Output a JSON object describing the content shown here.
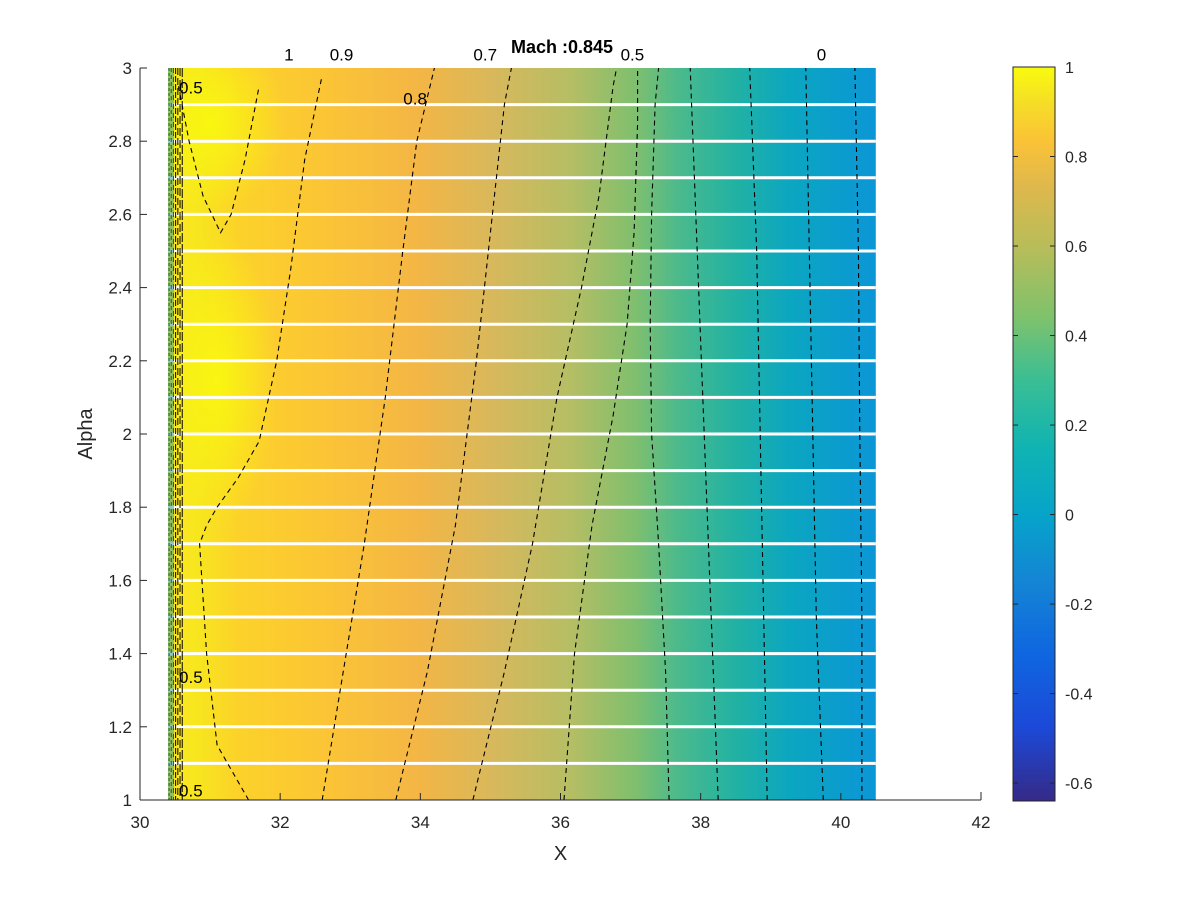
{
  "chart_data": {
    "type": "heatmap",
    "title": "Mach :0.845",
    "xlabel": "X",
    "ylabel": "Alpha",
    "xlim": [
      30,
      42
    ],
    "ylim": [
      1,
      3
    ],
    "x_ticks": [
      "30",
      "32",
      "34",
      "36",
      "38",
      "40",
      "42"
    ],
    "y_ticks": [
      "1",
      "1.2",
      "1.4",
      "1.6",
      "1.8",
      "2",
      "2.2",
      "2.4",
      "2.6",
      "2.8",
      "3"
    ],
    "field_extent": {
      "x": [
        30.4,
        40.5
      ],
      "y": [
        1,
        3
      ]
    },
    "colorbar": {
      "range": [
        -0.64,
        1
      ],
      "ticks": [
        "1",
        "0.8",
        "0.6",
        "0.4",
        "0.2",
        "0",
        "-0.2",
        "-0.4",
        "-0.6"
      ],
      "colormap": "parula"
    },
    "sample_rows": [
      1.0,
      1.1,
      1.2,
      1.3,
      1.4,
      1.5,
      1.6,
      1.7,
      1.8,
      1.9,
      2.0,
      2.1,
      2.2,
      2.3,
      2.4,
      2.5,
      2.6,
      2.7,
      2.8,
      2.9
    ],
    "contours": [
      {
        "level": "1",
        "points": [
          [
            31.55,
            1.0
          ],
          [
            31.1,
            1.15
          ],
          [
            30.95,
            1.4
          ],
          [
            30.85,
            1.7
          ],
          [
            30.95,
            1.75
          ],
          [
            31.1,
            1.8
          ],
          [
            31.4,
            1.88
          ],
          [
            31.7,
            1.98
          ],
          [
            31.95,
            2.2
          ],
          [
            32.15,
            2.45
          ],
          [
            32.35,
            2.75
          ],
          [
            32.6,
            2.98
          ]
        ]
      },
      {
        "level": "1",
        "points": [
          [
            30.55,
            2.95
          ],
          [
            30.7,
            2.8
          ],
          [
            30.9,
            2.65
          ],
          [
            31.15,
            2.55
          ],
          [
            31.3,
            2.6
          ],
          [
            31.5,
            2.75
          ],
          [
            31.7,
            2.95
          ]
        ]
      },
      {
        "level": "0.9",
        "points": [
          [
            32.6,
            1.0
          ],
          [
            32.9,
            1.35
          ],
          [
            33.2,
            1.7
          ],
          [
            33.5,
            2.1
          ],
          [
            33.75,
            2.5
          ],
          [
            33.95,
            2.8
          ],
          [
            34.2,
            3.0
          ]
        ]
      },
      {
        "level": "0.8",
        "points": [
          [
            33.65,
            1.0
          ],
          [
            34.1,
            1.35
          ],
          [
            34.5,
            1.75
          ],
          [
            34.8,
            2.2
          ],
          [
            35.0,
            2.55
          ],
          [
            35.2,
            2.9
          ],
          [
            35.3,
            3.0
          ]
        ]
      },
      {
        "level": "0.7",
        "points": [
          [
            34.75,
            1.0
          ],
          [
            35.2,
            1.35
          ],
          [
            35.6,
            1.7
          ],
          [
            35.95,
            2.1
          ],
          [
            36.3,
            2.4
          ],
          [
            36.55,
            2.65
          ],
          [
            36.75,
            2.95
          ],
          [
            36.8,
            3.0
          ]
        ]
      },
      {
        "level": "0.6",
        "points": [
          [
            36.05,
            1.0
          ],
          [
            36.2,
            1.4
          ],
          [
            36.45,
            1.75
          ],
          [
            36.75,
            2.05
          ],
          [
            36.95,
            2.3
          ],
          [
            37.05,
            2.55
          ],
          [
            37.1,
            2.85
          ],
          [
            37.1,
            3.0
          ]
        ]
      },
      {
        "level": "0.5",
        "points": [
          [
            37.55,
            1.0
          ],
          [
            37.5,
            1.35
          ],
          [
            37.4,
            1.7
          ],
          [
            37.3,
            2.0
          ],
          [
            37.28,
            2.3
          ],
          [
            37.3,
            2.6
          ],
          [
            37.35,
            2.9
          ],
          [
            37.4,
            3.0
          ]
        ]
      },
      {
        "level": "0.4",
        "points": [
          [
            38.25,
            1.0
          ],
          [
            38.15,
            1.5
          ],
          [
            38.05,
            2.0
          ],
          [
            37.95,
            2.5
          ],
          [
            37.85,
            3.0
          ]
        ]
      },
      {
        "level": "0.3",
        "points": [
          [
            38.95,
            1.0
          ],
          [
            38.9,
            1.5
          ],
          [
            38.85,
            2.0
          ],
          [
            38.8,
            2.5
          ],
          [
            38.7,
            3.0
          ]
        ]
      },
      {
        "level": "0.2",
        "points": [
          [
            39.75,
            1.0
          ],
          [
            39.65,
            1.5
          ],
          [
            39.6,
            2.0
          ],
          [
            39.55,
            2.5
          ],
          [
            39.5,
            3.0
          ]
        ]
      },
      {
        "level": "0",
        "points": [
          [
            40.3,
            1.0
          ],
          [
            40.3,
            1.5
          ],
          [
            40.27,
            2.0
          ],
          [
            40.25,
            2.5
          ],
          [
            40.2,
            3.0
          ]
        ]
      }
    ],
    "contour_labels": [
      {
        "text": "1",
        "x": 32.0,
        "y": 3.02
      },
      {
        "text": "0.9",
        "x": 32.65,
        "y": 3.02
      },
      {
        "text": "0.7",
        "x": 34.7,
        "y": 3.02
      },
      {
        "text": "0.5",
        "x": 36.8,
        "y": 3.02
      },
      {
        "text": "0",
        "x": 39.6,
        "y": 3.02
      },
      {
        "text": "0.8",
        "x": 33.7,
        "y": 2.9
      },
      {
        "text": "0.5",
        "x": 30.5,
        "y": 2.93
      },
      {
        "text": "0.5",
        "x": 30.5,
        "y": 1.32
      },
      {
        "text": "0.5",
        "x": 30.5,
        "y": 1.01
      }
    ]
  }
}
